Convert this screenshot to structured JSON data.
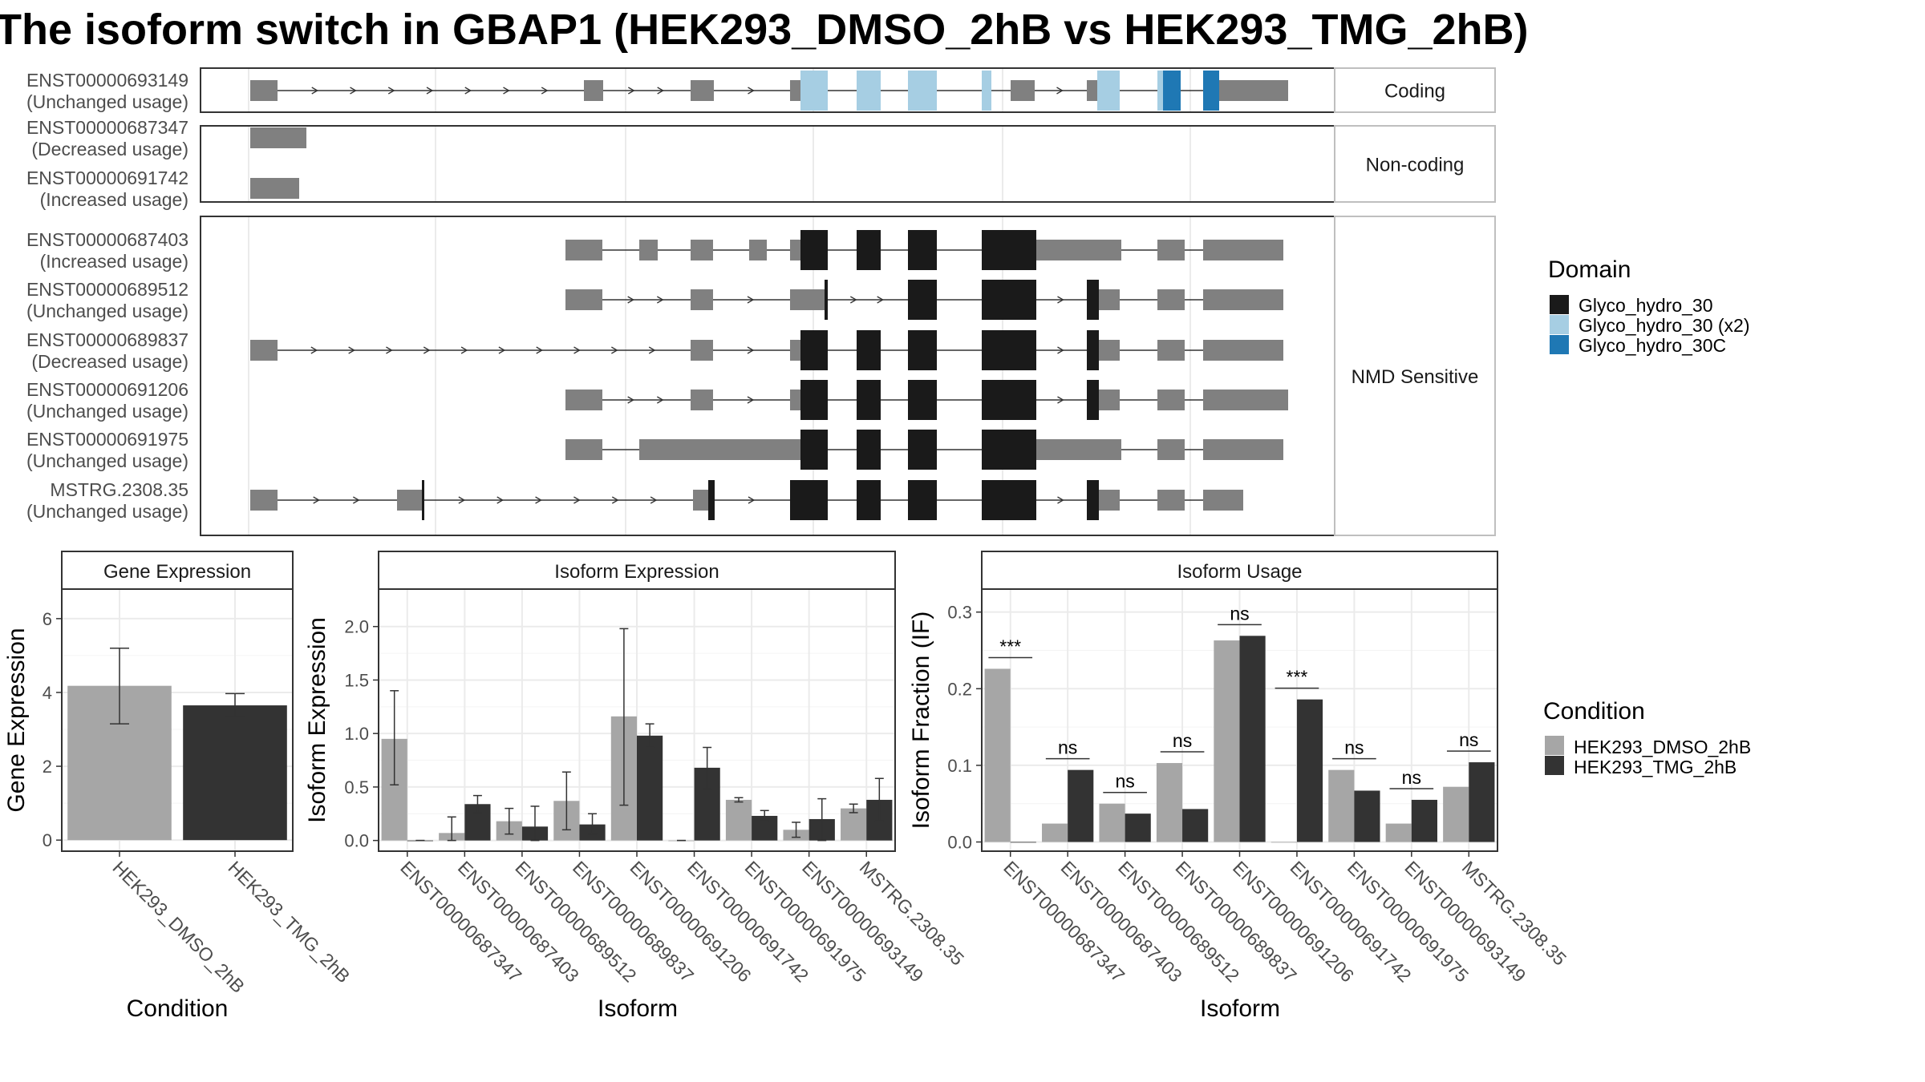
{
  "title": "The isoform switch in GBAP1 (HEK293_DMSO_2hB vs HEK293_TMG_2hB)",
  "colors": {
    "exon": "#808080",
    "domain_glyco_hydro_30": "#1a1a1a",
    "domain_glyco_hydro_30_x2": "#a6cee3",
    "domain_glyco_hydro_30c": "#1f78b4",
    "dmso": "#a6a6a6",
    "tmg": "#333333",
    "panel_border": "#333333",
    "grid": "#ebebeb",
    "strip": "#ffffff"
  },
  "transcript_panels": [
    {
      "label": "Coding",
      "transcripts": [
        {
          "id": "ENST00000693149",
          "usage": "(Unchanged usage)"
        }
      ]
    },
    {
      "label": "Non-coding",
      "transcripts": [
        {
          "id": "ENST00000687347",
          "usage": "(Decreased usage)"
        },
        {
          "id": "ENST00000691742",
          "usage": "(Increased usage)"
        }
      ]
    },
    {
      "label": "NMD Sensitive",
      "transcripts": [
        {
          "id": "ENST00000687403",
          "usage": "(Increased usage)"
        },
        {
          "id": "ENST00000689512",
          "usage": "(Unchanged usage)"
        },
        {
          "id": "ENST00000689837",
          "usage": "(Decreased usage)"
        },
        {
          "id": "ENST00000691206",
          "usage": "(Unchanged usage)"
        },
        {
          "id": "ENST00000691975",
          "usage": "(Unchanged usage)"
        },
        {
          "id": "MSTRG.2308.35",
          "usage": "(Unchanged usage)"
        }
      ]
    }
  ],
  "domain_legend": {
    "title": "Domain",
    "items": [
      "Glyco_hydro_30",
      "Glyco_hydro_30 (x2)",
      "Glyco_hydro_30C"
    ]
  },
  "condition_legend": {
    "title": "Condition",
    "items": [
      "HEK293_DMSO_2hB",
      "HEK293_TMG_2hB"
    ]
  },
  "chart_data": [
    {
      "type": "bar",
      "title": "Gene Expression",
      "xlabel": "Condition",
      "ylabel": "Gene Expression",
      "categories": [
        "HEK293_DMSO_2hB",
        "HEK293_TMG_2hB"
      ],
      "values": [
        4.18,
        3.65
      ],
      "error": [
        [
          3.15,
          5.2
        ],
        [
          3.35,
          3.97
        ]
      ],
      "ylim": [
        -0.3,
        6.8
      ],
      "yticks": [
        0,
        2,
        4,
        6
      ],
      "grid": true
    },
    {
      "type": "bar",
      "title": "Isoform Expression",
      "xlabel": "Isoform",
      "ylabel": "Isoform Expression",
      "categories": [
        "ENST00000687347",
        "ENST00000687403",
        "ENST00000689512",
        "ENST00000689837",
        "ENST00000691206",
        "ENST00000691742",
        "ENST00000691975",
        "ENST00000693149",
        "MSTRG.2308.35"
      ],
      "series": [
        {
          "name": "HEK293_DMSO_2hB",
          "values": [
            0.95,
            0.07,
            0.18,
            0.37,
            1.16,
            0.0,
            0.38,
            0.1,
            0.3
          ],
          "error": [
            [
              0.52,
              1.4
            ],
            [
              0.0,
              0.22
            ],
            [
              0.06,
              0.3
            ],
            [
              0.1,
              0.64
            ],
            [
              0.33,
              1.98
            ],
            [
              0.0,
              0.0
            ],
            [
              0.36,
              0.4
            ],
            [
              0.03,
              0.17
            ],
            [
              0.26,
              0.34
            ]
          ]
        },
        {
          "name": "HEK293_TMG_2hB",
          "values": [
            0.0,
            0.34,
            0.13,
            0.15,
            0.98,
            0.68,
            0.23,
            0.2,
            0.38
          ],
          "error": [
            [
              0.0,
              0.0
            ],
            [
              0.26,
              0.42
            ],
            [
              0.0,
              0.32
            ],
            [
              0.06,
              0.25
            ],
            [
              0.87,
              1.09
            ],
            [
              0.48,
              0.87
            ],
            [
              0.18,
              0.28
            ],
            [
              0.0,
              0.39
            ],
            [
              0.18,
              0.58
            ]
          ]
        }
      ],
      "ylim": [
        -0.1,
        2.35
      ],
      "yticks": [
        0.0,
        0.5,
        1.0,
        1.5,
        2.0
      ],
      "yticklabels": [
        "0.0",
        "0.5",
        "1.0",
        "1.5",
        "2.0"
      ],
      "grid": true
    },
    {
      "type": "bar",
      "title": "Isoform Usage",
      "xlabel": "Isoform",
      "ylabel": "Isoform Fraction (IF)",
      "categories": [
        "ENST00000687347",
        "ENST00000687403",
        "ENST00000689512",
        "ENST00000689837",
        "ENST00000691206",
        "ENST00000691742",
        "ENST00000691975",
        "ENST00000693149",
        "MSTRG.2308.35"
      ],
      "series": [
        {
          "name": "HEK293_DMSO_2hB",
          "values": [
            0.226,
            0.024,
            0.05,
            0.103,
            0.263,
            0.0,
            0.094,
            0.024,
            0.072
          ]
        },
        {
          "name": "HEK293_TMG_2hB",
          "values": [
            0.0,
            0.094,
            0.037,
            0.043,
            0.269,
            0.186,
            0.067,
            0.055,
            0.104
          ]
        }
      ],
      "significance": [
        "***",
        "ns",
        "ns",
        "ns",
        "ns",
        "***",
        "ns",
        "ns",
        "ns"
      ],
      "ylim": [
        -0.012,
        0.33
      ],
      "yticks": [
        0.0,
        0.1,
        0.2,
        0.3
      ],
      "yticklabels": [
        "0.0",
        "0.1",
        "0.2",
        "0.3"
      ],
      "grid": true
    }
  ]
}
